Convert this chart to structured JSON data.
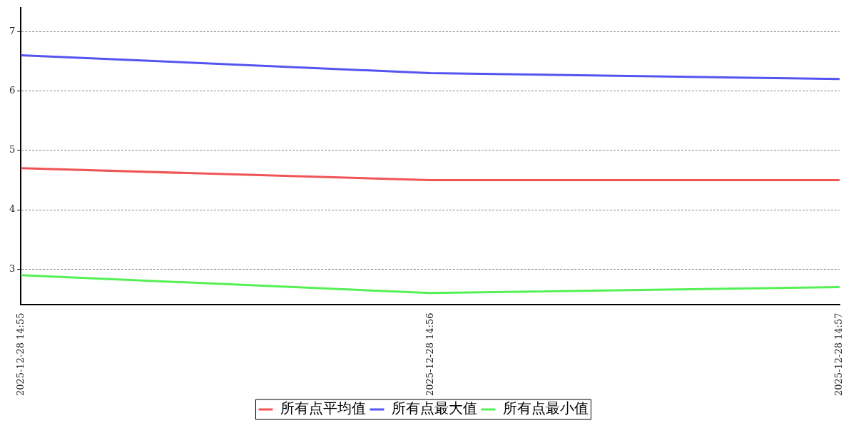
{
  "chart_data": {
    "type": "line",
    "categories": [
      "2025-12-28 14:55",
      "2025-12-28 14:56",
      "2025-12-28 14:57"
    ],
    "series": [
      {
        "name": "所有点平均值",
        "color": "#f05454",
        "values": [
          4.7,
          4.5,
          4.5
        ]
      },
      {
        "name": "所有点最大值",
        "color": "#5454f0",
        "values": [
          6.6,
          6.3,
          6.2
        ]
      },
      {
        "name": "所有点最小值",
        "color": "#54f054",
        "values": [
          2.9,
          2.6,
          2.7
        ]
      }
    ],
    "ylim": [
      2.4,
      7.4
    ],
    "yticks": [
      3,
      4,
      5,
      6,
      7
    ],
    "grid": "y",
    "legend": "bottom",
    "marker": "none",
    "line_style": "solid"
  }
}
